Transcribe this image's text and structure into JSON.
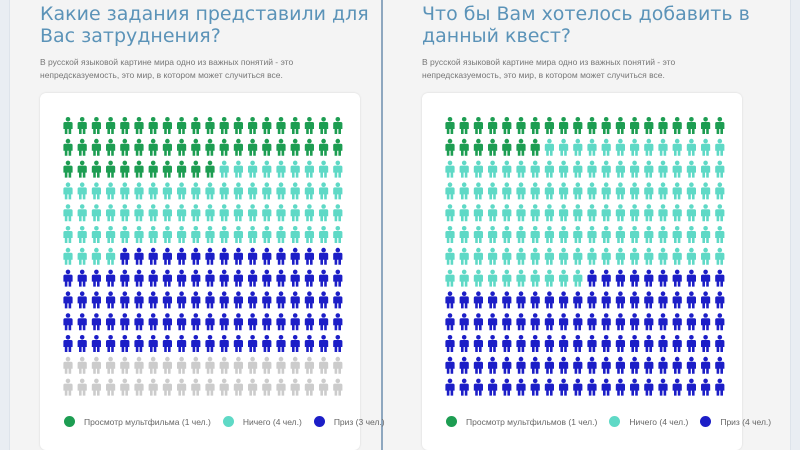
{
  "colors": {
    "green": "#1d9d52",
    "teal": "#5fd9c6",
    "blue": "#1c1ec7"
  },
  "panels": [
    {
      "title": "Какие задания представили для Вас затруднения?",
      "subtitle": "В русской языковой картине мира одно из важных понятий - это непредсказуемость, это мир, в котором может случиться все.",
      "legend": [
        "Просмотр мультфильма (1 чел.)",
        "Ничего (4 чел.)",
        "Приз (3 чел.)"
      ]
    },
    {
      "title": "Что бы Вам хотелось добавить в данный квест?",
      "subtitle": "В русской языковой картине мира одно из важных понятий - это непредсказуемость, это мир, в котором может случиться все.",
      "legend": [
        "Просмотр мультфильмов (1 чел.)",
        "Ничего (4 чел.)",
        "Приз (4 чел.)"
      ]
    }
  ],
  "chart_data": [
    {
      "type": "pictogram",
      "title": "Какие задания представили для Вас затруднения?",
      "series": [
        {
          "name": "Просмотр мультфильма (1 чел.)",
          "value": 1,
          "color": "#1d9d52",
          "icons": 51
        },
        {
          "name": "Ничего (4 чел.)",
          "value": 4,
          "color": "#5fd9c6",
          "icons": 73
        },
        {
          "name": "Приз (3 чел.)",
          "value": 3,
          "color": "#1c1ec7",
          "icons": 96
        }
      ],
      "grid": {
        "rows": 13,
        "cols": 20
      }
    },
    {
      "type": "pictogram",
      "title": "Что бы Вам хотелось добавить в данный квест?",
      "series": [
        {
          "name": "Просмотр мультфильмов (1 чел.)",
          "value": 1,
          "color": "#1d9d52",
          "icons": 27
        },
        {
          "name": "Ничего (4 чел.)",
          "value": 4,
          "color": "#5fd9c6",
          "icons": 123
        },
        {
          "name": "Приз (4 чел.)",
          "value": 4,
          "color": "#1c1ec7",
          "icons": 110
        }
      ],
      "grid": {
        "rows": 13,
        "cols": 20
      }
    }
  ]
}
